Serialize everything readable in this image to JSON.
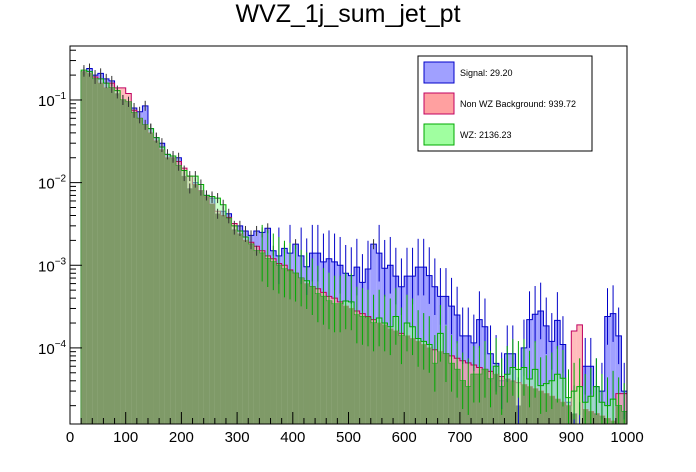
{
  "chart_data": {
    "type": "histogram",
    "title": "WVZ_1j_sum_jet_pt",
    "xlabel": "",
    "ylabel": "",
    "xlim": [
      0,
      1000
    ],
    "ylim_log": [
      1.2e-05,
      0.45
    ],
    "y_scale": "log",
    "bin_width": 10,
    "x_ticks": [
      "0",
      "100",
      "200",
      "300",
      "400",
      "500",
      "600",
      "700",
      "800",
      "900",
      "1000"
    ],
    "y_ticks": [
      {
        "value": 0.1,
        "base": "10",
        "exp": "−1"
      },
      {
        "value": 0.01,
        "base": "10",
        "exp": "−2"
      },
      {
        "value": 0.001,
        "base": "10",
        "exp": "−3"
      },
      {
        "value": 0.0001,
        "base": "10",
        "exp": "−4"
      }
    ],
    "legend_position": "top-right",
    "series": [
      {
        "name": "Signal",
        "label": "Signal: 29.20",
        "fill": "#a0a0ff",
        "line": "#0000c8",
        "x": [
          20,
          30,
          40,
          50,
          60,
          70,
          80,
          90,
          100,
          110,
          120,
          130,
          140,
          150,
          160,
          170,
          180,
          190,
          200,
          210,
          220,
          230,
          240,
          250,
          260,
          270,
          280,
          290,
          300,
          310,
          320,
          330,
          340,
          350,
          360,
          370,
          380,
          390,
          400,
          410,
          420,
          430,
          440,
          450,
          460,
          470,
          480,
          490,
          500,
          510,
          520,
          530,
          540,
          550,
          560,
          570,
          580,
          590,
          600,
          610,
          620,
          630,
          640,
          650,
          660,
          670,
          680,
          690,
          700,
          710,
          720,
          730,
          740,
          750,
          760,
          770,
          780,
          790,
          800,
          810,
          820,
          830,
          840,
          850,
          860,
          870,
          880,
          890,
          900,
          910,
          920,
          930,
          940,
          950,
          960,
          970,
          980,
          990
        ],
        "values": [
          0.22,
          0.24,
          0.2,
          0.21,
          0.18,
          0.17,
          0.12,
          0.1,
          0.095,
          0.08,
          0.072,
          0.085,
          0.045,
          0.035,
          0.03,
          0.022,
          0.02,
          0.02,
          0.012,
          0.0085,
          0.01,
          0.008,
          0.007,
          0.0065,
          0.0042,
          0.0045,
          0.0042,
          0.0027,
          0.003,
          0.0026,
          0.0023,
          0.0026,
          0.0025,
          0.0028,
          0.0015,
          0.0013,
          0.0016,
          0.0014,
          0.0018,
          0.0013,
          0.00096,
          0.0014,
          0.0014,
          0.0011,
          0.0012,
          0.0011,
          0.001,
          0.0008,
          0.00075,
          0.00095,
          0.00062,
          0.0009,
          0.0018,
          0.0014,
          0.00092,
          0.001,
          0.00074,
          0.00055,
          0.00074,
          0.00074,
          0.00095,
          0.00095,
          0.00075,
          0.00055,
          0.00042,
          0.00042,
          0.00032,
          0.00025,
          0.00014,
          0.00014,
          0.000115,
          0.00022,
          0.00018,
          8.5e-05,
          6.5e-05,
          4e-05,
          8.5e-05,
          8.5e-05,
          2e-05,
          0.0001,
          0.00022,
          0.000255,
          0.00028,
          0.000185,
          0.00012,
          0.000215,
          0.00011,
          2.2e-05,
          1.6e-05,
          1e-05,
          6e-05,
          6e-05,
          3.4e-05,
          3e-05,
          0.00024,
          0.00026,
          0.00014,
          3e-05
        ]
      },
      {
        "name": "Non WZ Background",
        "label": "Non WZ Background: 939.72",
        "fill": "#ffa0a0",
        "line": "#c00060",
        "x": [
          20,
          30,
          40,
          50,
          60,
          70,
          80,
          90,
          100,
          110,
          120,
          130,
          140,
          150,
          160,
          170,
          180,
          190,
          200,
          210,
          220,
          230,
          240,
          250,
          260,
          270,
          280,
          290,
          300,
          310,
          320,
          330,
          340,
          350,
          360,
          370,
          380,
          390,
          400,
          410,
          420,
          430,
          440,
          450,
          460,
          470,
          480,
          490,
          500,
          510,
          520,
          530,
          540,
          550,
          560,
          570,
          580,
          590,
          600,
          610,
          620,
          630,
          640,
          650,
          660,
          670,
          680,
          690,
          700,
          710,
          720,
          730,
          740,
          750,
          760,
          770,
          780,
          790,
          800,
          810,
          820,
          830,
          840,
          850,
          860,
          870,
          880,
          890,
          900,
          910,
          920,
          930,
          940,
          950,
          960,
          970,
          980,
          990
        ],
        "values": [
          0.22,
          0.21,
          0.19,
          0.16,
          0.14,
          0.16,
          0.14,
          0.14,
          0.12,
          0.075,
          0.06,
          0.05,
          0.04,
          0.032,
          0.025,
          0.02,
          0.02,
          0.018,
          0.015,
          0.012,
          0.0095,
          0.008,
          0.0068,
          0.0055,
          0.0045,
          0.004,
          0.0038,
          0.0032,
          0.0024,
          0.002,
          0.0019,
          0.0017,
          0.0015,
          0.0013,
          0.0012,
          0.00105,
          0.001,
          0.00088,
          0.0008,
          0.0007,
          0.0006,
          0.00055,
          0.00052,
          0.00047,
          0.00042,
          0.0004,
          0.00036,
          0.00032,
          0.0003,
          0.00028,
          0.00026,
          0.00024,
          0.00022,
          0.0002,
          0.00019,
          0.00017,
          0.00016,
          0.00015,
          0.00014,
          0.00013,
          0.00012,
          0.00011,
          0.0001,
          9.5e-05,
          9e-05,
          8.5e-05,
          8e-05,
          7.5e-05,
          7e-05,
          6.6e-05,
          6.2e-05,
          5.8e-05,
          5.5e-05,
          5.2e-05,
          4.8e-05,
          4.5e-05,
          4.2e-05,
          4e-05,
          3.8e-05,
          3.6e-05,
          3.4e-05,
          3.2e-05,
          3e-05,
          2.8e-05,
          2.6e-05,
          2.4e-05,
          2.2e-05,
          2e-05,
          0.00016,
          0.00019,
          1.8e-05,
          1.7e-05,
          1.6e-05,
          1.5e-05,
          1.4e-05,
          1.3e-05,
          2.8e-05,
          2.8e-05
        ]
      },
      {
        "name": "WZ",
        "label": "WZ: 2136.23",
        "fill": "#a0ffa0",
        "line": "#00aa00",
        "x": [
          20,
          30,
          40,
          50,
          60,
          70,
          80,
          90,
          100,
          110,
          120,
          130,
          140,
          150,
          160,
          170,
          180,
          190,
          200,
          210,
          220,
          230,
          240,
          250,
          260,
          270,
          280,
          290,
          300,
          310,
          320,
          330,
          340,
          350,
          360,
          370,
          380,
          390,
          400,
          410,
          420,
          430,
          440,
          450,
          460,
          470,
          480,
          490,
          500,
          510,
          520,
          530,
          540,
          550,
          560,
          570,
          580,
          590,
          600,
          610,
          620,
          630,
          640,
          650,
          660,
          670,
          680,
          690,
          700,
          710,
          720,
          730,
          740,
          750,
          760,
          770,
          780,
          790,
          800,
          810,
          820,
          830,
          840,
          850,
          860,
          870,
          880,
          890,
          900,
          910,
          920,
          930,
          940,
          950,
          960,
          970,
          980,
          990
        ],
        "values": [
          0.23,
          0.22,
          0.18,
          0.18,
          0.16,
          0.14,
          0.13,
          0.1,
          0.095,
          0.07,
          0.06,
          0.05,
          0.045,
          0.035,
          0.027,
          0.022,
          0.021,
          0.016,
          0.014,
          0.012,
          0.012,
          0.0095,
          0.007,
          0.0068,
          0.0065,
          0.0054,
          0.0037,
          0.003,
          0.0026,
          0.0022,
          0.0018,
          0.0015,
          0.0014,
          0.0012,
          0.0011,
          0.001,
          0.0009,
          0.00085,
          0.0008,
          0.0007,
          0.00065,
          0.00055,
          0.00045,
          0.00042,
          0.00037,
          0.00034,
          0.00034,
          0.00037,
          0.00036,
          0.00025,
          0.00024,
          0.00023,
          0.0002,
          0.00023,
          0.0002,
          0.00018,
          0.00024,
          0.00014,
          0.0002,
          0.00018,
          0.00013,
          0.00012,
          0.00011,
          6.5e-05,
          0.00015,
          8.5e-05,
          6.5e-05,
          5.5e-05,
          4e-05,
          3.4e-05,
          4.8e-05,
          4.8e-05,
          5.5e-05,
          4.2e-05,
          6e-05,
          3.4e-05,
          4.8e-05,
          5.8e-05,
          5.5e-05,
          5.8e-05,
          4.2e-05,
          5.5e-05,
          3.5e-05,
          3.7e-05,
          4e-05,
          4.8e-05,
          4.3e-05,
          2.5e-05,
          3e-05,
          3.4e-05,
          2.2e-05,
          2.6e-05,
          3.4e-05,
          2.2e-05,
          2e-05,
          2.4e-05,
          2e-05,
          1.7e-05
        ]
      }
    ]
  }
}
